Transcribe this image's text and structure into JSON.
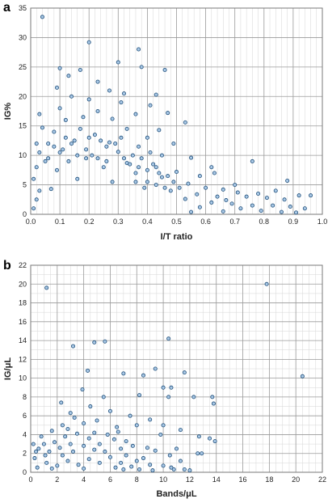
{
  "colors": {
    "marker_fill": "#a9c8e6",
    "marker_edge": "#1f4e79",
    "grid": "#9a9a9a"
  },
  "chart_data": [
    {
      "type": "scatter",
      "panel_label": "a",
      "title": "",
      "xlabel": "I/T ratio",
      "ylabel": "IG%",
      "xlim": [
        0,
        1.0
      ],
      "ylim": [
        0,
        35
      ],
      "xticks": [
        "0.0",
        "0.1",
        "0.2",
        "0.3",
        "0.4",
        "0.5",
        "0.6",
        "0.7",
        "0.8",
        "0.9",
        "1.0"
      ],
      "yticks": [
        "0",
        "5",
        "10",
        "15",
        "20",
        "25",
        "30",
        "35"
      ],
      "grid": true,
      "legend": "none",
      "series": [
        {
          "points": [
            [
              0.04,
              33.5
            ],
            [
              0.2,
              29.2
            ],
            [
              0.37,
              28.0
            ],
            [
              0.3,
              25.8
            ],
            [
              0.1,
              24.8
            ],
            [
              0.38,
              25.0
            ],
            [
              0.46,
              24.5
            ],
            [
              0.17,
              24.5
            ],
            [
              0.13,
              23.5
            ],
            [
              0.23,
              22.5
            ],
            [
              0.09,
              21.5
            ],
            [
              0.27,
              21.0
            ],
            [
              0.32,
              20.5
            ],
            [
              0.43,
              20.3
            ],
            [
              0.14,
              20.0
            ],
            [
              0.2,
              19.5
            ],
            [
              0.31,
              19.0
            ],
            [
              0.41,
              18.5
            ],
            [
              0.1,
              18.0
            ],
            [
              0.23,
              17.5
            ],
            [
              0.03,
              17.0
            ],
            [
              0.36,
              17.0
            ],
            [
              0.47,
              17.2
            ],
            [
              0.18,
              16.5
            ],
            [
              0.28,
              16.2
            ],
            [
              0.12,
              16.0
            ],
            [
              0.53,
              15.6
            ],
            [
              0.04,
              14.7
            ],
            [
              0.33,
              14.5
            ],
            [
              0.44,
              14.3
            ],
            [
              0.08,
              14.0
            ],
            [
              0.22,
              13.5
            ],
            [
              0.4,
              13.0
            ],
            [
              0.15,
              12.5
            ],
            [
              0.27,
              12.2
            ],
            [
              0.49,
              12.0
            ],
            [
              0.02,
              12.0
            ],
            [
              0.37,
              11.5
            ],
            [
              0.11,
              11.0
            ],
            [
              0.3,
              10.6
            ],
            [
              0.45,
              10.0
            ],
            [
              0.55,
              9.6
            ],
            [
              0.19,
              9.5
            ],
            [
              0.05,
              9.0
            ],
            [
              0.76,
              9.0
            ],
            [
              0.33,
              8.7
            ],
            [
              0.42,
              8.5
            ],
            [
              0.25,
              8.0
            ],
            [
              0.62,
              8.0
            ],
            [
              0.09,
              7.5
            ],
            [
              0.5,
              7.2
            ],
            [
              0.63,
              7.0
            ],
            [
              0.36,
              7.0
            ],
            [
              0.58,
              6.5
            ],
            [
              0.16,
              6.0
            ],
            [
              0.88,
              5.7
            ],
            [
              0.45,
              6.3
            ],
            [
              0.28,
              5.5
            ],
            [
              0.7,
              5.0
            ],
            [
              0.54,
              5.2
            ],
            [
              0.6,
              4.5
            ],
            [
              0.39,
              4.5
            ],
            [
              0.66,
              4.2
            ],
            [
              0.48,
              4.0
            ],
            [
              0.84,
              4.0
            ],
            [
              0.07,
              4.3
            ],
            [
              0.71,
              3.7
            ],
            [
              0.78,
              3.5
            ],
            [
              0.92,
              3.2
            ],
            [
              0.96,
              3.2
            ],
            [
              0.57,
              3.4
            ],
            [
              0.64,
              3.0
            ],
            [
              0.74,
              3.0
            ],
            [
              0.81,
              2.8
            ],
            [
              0.87,
              2.5
            ],
            [
              0.67,
              2.4
            ],
            [
              0.53,
              2.6
            ],
            [
              0.62,
              2.0
            ],
            [
              0.69,
              1.8
            ],
            [
              0.76,
              1.5
            ],
            [
              0.83,
              1.5
            ],
            [
              0.89,
              1.3
            ],
            [
              0.94,
              1.0
            ],
            [
              0.72,
              1.0
            ],
            [
              0.58,
              1.2
            ],
            [
              0.79,
              0.6
            ],
            [
              0.66,
              0.5
            ],
            [
              0.86,
              0.4
            ],
            [
              0.91,
              0.3
            ],
            [
              0.55,
              0.4
            ],
            [
              0.01,
              1.0
            ],
            [
              0.02,
              2.5
            ],
            [
              0.03,
              4.0
            ],
            [
              0.01,
              6.0
            ],
            [
              0.02,
              8.0
            ],
            [
              0.03,
              10.5
            ],
            [
              0.06,
              12.0
            ],
            [
              0.08,
              11.5
            ],
            [
              0.12,
              13.0
            ],
            [
              0.14,
              12.0
            ],
            [
              0.17,
              14.5
            ],
            [
              0.2,
              13.0
            ],
            [
              0.24,
              12.5
            ],
            [
              0.26,
              11.5
            ],
            [
              0.29,
              12.0
            ],
            [
              0.31,
              13.0
            ],
            [
              0.35,
              10.0
            ],
            [
              0.38,
              9.5
            ],
            [
              0.41,
              10.5
            ],
            [
              0.43,
              8.0
            ],
            [
              0.06,
              9.5
            ],
            [
              0.1,
              10.5
            ],
            [
              0.13,
              9.0
            ],
            [
              0.16,
              10.0
            ],
            [
              0.19,
              11.0
            ],
            [
              0.21,
              10.0
            ],
            [
              0.23,
              9.5
            ],
            [
              0.26,
              9.0
            ],
            [
              0.32,
              9.5
            ],
            [
              0.34,
              8.5
            ],
            [
              0.37,
              8.0
            ],
            [
              0.4,
              7.5
            ],
            [
              0.44,
              7.0
            ],
            [
              0.47,
              6.5
            ],
            [
              0.49,
              5.5
            ],
            [
              0.51,
              4.5
            ],
            [
              0.46,
              4.5
            ],
            [
              0.43,
              5.0
            ],
            [
              0.4,
              5.5
            ],
            [
              0.36,
              5.5
            ]
          ]
        }
      ]
    },
    {
      "type": "scatter",
      "panel_label": "b",
      "title": "",
      "xlabel": "Bands/μL",
      "ylabel": "IG/μL",
      "xlim": [
        0,
        22
      ],
      "ylim": [
        0,
        22
      ],
      "xticks": [
        "0",
        "2",
        "4",
        "6",
        "8",
        "10",
        "12",
        "14",
        "16",
        "18",
        "20",
        "22"
      ],
      "yticks": [
        "0",
        "2",
        "4",
        "6",
        "8",
        "10",
        "12",
        "14",
        "16",
        "18",
        "20",
        "22"
      ],
      "grid": true,
      "legend": "none",
      "series": [
        {
          "points": [
            [
              1.2,
              19.6
            ],
            [
              17.8,
              20.0
            ],
            [
              20.5,
              10.2
            ],
            [
              10.4,
              14.2
            ],
            [
              4.8,
              13.8
            ],
            [
              5.6,
              13.9
            ],
            [
              3.2,
              13.4
            ],
            [
              11.6,
              10.6
            ],
            [
              9.4,
              11.0
            ],
            [
              7.0,
              10.5
            ],
            [
              4.3,
              10.8
            ],
            [
              8.5,
              10.3
            ],
            [
              10.0,
              9.0
            ],
            [
              10.6,
              9.0
            ],
            [
              12.3,
              8.0
            ],
            [
              13.7,
              8.0
            ],
            [
              13.8,
              7.3
            ],
            [
              8.2,
              8.2
            ],
            [
              10.4,
              8.0
            ],
            [
              5.5,
              8.0
            ],
            [
              3.9,
              8.8
            ],
            [
              2.3,
              7.4
            ],
            [
              3.0,
              6.3
            ],
            [
              4.5,
              7.0
            ],
            [
              6.0,
              6.5
            ],
            [
              7.5,
              6.0
            ],
            [
              9.0,
              5.6
            ],
            [
              8.0,
              5.0
            ],
            [
              6.5,
              4.8
            ],
            [
              10.0,
              5.0
            ],
            [
              11.3,
              4.5
            ],
            [
              9.8,
              4.0
            ],
            [
              12.7,
              3.8
            ],
            [
              13.5,
              3.6
            ],
            [
              13.9,
              3.3
            ],
            [
              12.6,
              2.0
            ],
            [
              12.9,
              2.0
            ],
            [
              11.0,
              2.5
            ],
            [
              10.5,
              1.8
            ],
            [
              9.4,
              2.3
            ],
            [
              10.0,
              0.7
            ],
            [
              10.6,
              0.5
            ],
            [
              11.6,
              0.3
            ],
            [
              9.0,
              0.8
            ],
            [
              8.5,
              1.5
            ],
            [
              7.7,
              2.8
            ],
            [
              7.2,
              3.3
            ],
            [
              6.8,
              2.5
            ],
            [
              6.3,
              3.5
            ],
            [
              5.8,
              4.0
            ],
            [
              5.2,
              3.0
            ],
            [
              4.8,
              4.2
            ],
            [
              4.4,
              3.6
            ],
            [
              4.0,
              2.8
            ],
            [
              3.5,
              4.1
            ],
            [
              3.0,
              3.0
            ],
            [
              2.6,
              3.8
            ],
            [
              2.2,
              2.6
            ],
            [
              1.8,
              3.2
            ],
            [
              1.4,
              2.2
            ],
            [
              1.0,
              3.0
            ],
            [
              0.6,
              2.5
            ],
            [
              0.3,
              1.5
            ],
            [
              0.2,
              3.0
            ],
            [
              0.5,
              0.5
            ],
            [
              1.2,
              1.0
            ],
            [
              2.0,
              0.7
            ],
            [
              2.8,
              1.2
            ],
            [
              3.6,
              0.8
            ],
            [
              4.4,
              1.4
            ],
            [
              5.2,
              1.0
            ],
            [
              6.0,
              1.6
            ],
            [
              6.8,
              1.0
            ],
            [
              7.6,
              0.6
            ],
            [
              8.2,
              0.3
            ],
            [
              9.2,
              0.2
            ],
            [
              10.8,
              0.3
            ],
            [
              11.3,
              1.2
            ],
            [
              12.0,
              0.2
            ],
            [
              8.8,
              2.6
            ],
            [
              3.3,
              5.8
            ],
            [
              2.8,
              4.6
            ],
            [
              4.0,
              5.2
            ],
            [
              5.0,
              5.5
            ],
            [
              6.6,
              4.3
            ],
            [
              1.6,
              4.4
            ],
            [
              2.4,
              5.0
            ],
            [
              0.8,
              3.8
            ],
            [
              1.1,
              1.8
            ],
            [
              0.4,
              2.2
            ],
            [
              1.6,
              0.4
            ],
            [
              2.4,
              1.8
            ],
            [
              3.2,
              2.2
            ],
            [
              4.0,
              0.4
            ],
            [
              4.8,
              2.4
            ],
            [
              5.6,
              2.2
            ],
            [
              6.4,
              0.5
            ],
            [
              7.2,
              1.8
            ],
            [
              8.0,
              1.2
            ],
            [
              7.0,
              0.3
            ]
          ]
        }
      ]
    }
  ]
}
